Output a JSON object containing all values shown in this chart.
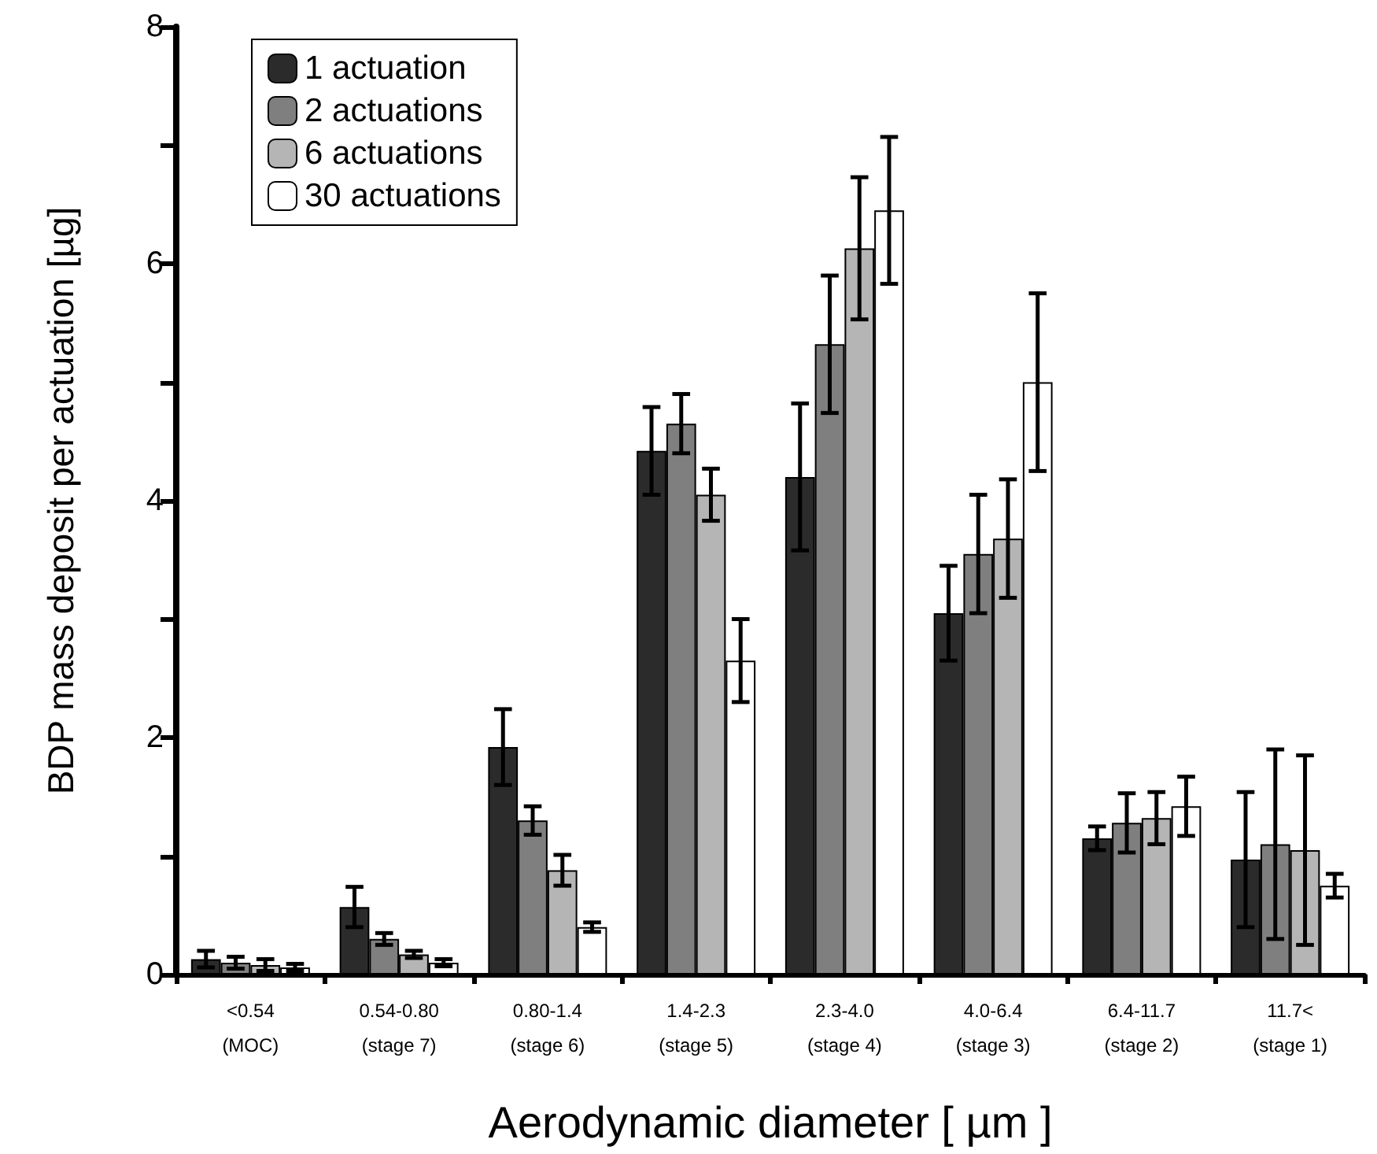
{
  "chart_data": {
    "type": "bar",
    "xlabel": "Aerodynamic diameter [ µm ]",
    "ylabel": "BDP mass deposit per actuation [µg]",
    "categories": [
      "<0.54\n(MOC)",
      "0.54-0.80\n(stage 7)",
      "0.80-1.4\n(stage 6)",
      "1.4-2.3\n(stage 5)",
      "2.3-4.0\n(stage 4)",
      "4.0-6.4\n(stage 3)",
      "6.4-11.7\n(stage 2)",
      "11.7<\n(stage 1)"
    ],
    "series": [
      {
        "name": "1 actuation",
        "color": "#2b2b2b",
        "values": [
          0.13,
          0.57,
          1.92,
          4.42,
          4.2,
          3.05,
          1.15,
          0.97
        ],
        "errors": [
          0.07,
          0.17,
          0.32,
          0.37,
          0.62,
          0.4,
          0.1,
          0.57
        ]
      },
      {
        "name": "2 actuations",
        "color": "#7f7f7f",
        "values": [
          0.1,
          0.3,
          1.3,
          4.65,
          5.32,
          3.55,
          1.28,
          1.1
        ],
        "errors": [
          0.05,
          0.05,
          0.12,
          0.25,
          0.58,
          0.5,
          0.25,
          0.8
        ]
      },
      {
        "name": "6 actuations",
        "color": "#b5b5b5",
        "values": [
          0.08,
          0.17,
          0.88,
          4.05,
          6.13,
          3.68,
          1.32,
          1.05
        ],
        "errors": [
          0.05,
          0.03,
          0.13,
          0.22,
          0.6,
          0.5,
          0.22,
          0.8
        ]
      },
      {
        "name": "30 actuations",
        "color": "#ffffff",
        "values": [
          0.06,
          0.1,
          0.4,
          2.65,
          6.45,
          5.0,
          1.42,
          0.75
        ],
        "errors": [
          0.03,
          0.03,
          0.04,
          0.35,
          0.62,
          0.75,
          0.25,
          0.1
        ]
      }
    ],
    "ylim": [
      0,
      8
    ],
    "yticks": [
      0,
      {
        "value": 1,
        "label": null
      },
      2,
      {
        "value": 3,
        "label": null
      },
      4,
      {
        "value": 5,
        "label": null
      },
      6,
      {
        "value": 7,
        "label": null
      },
      8
    ],
    "legend": "top left",
    "grid": false
  }
}
